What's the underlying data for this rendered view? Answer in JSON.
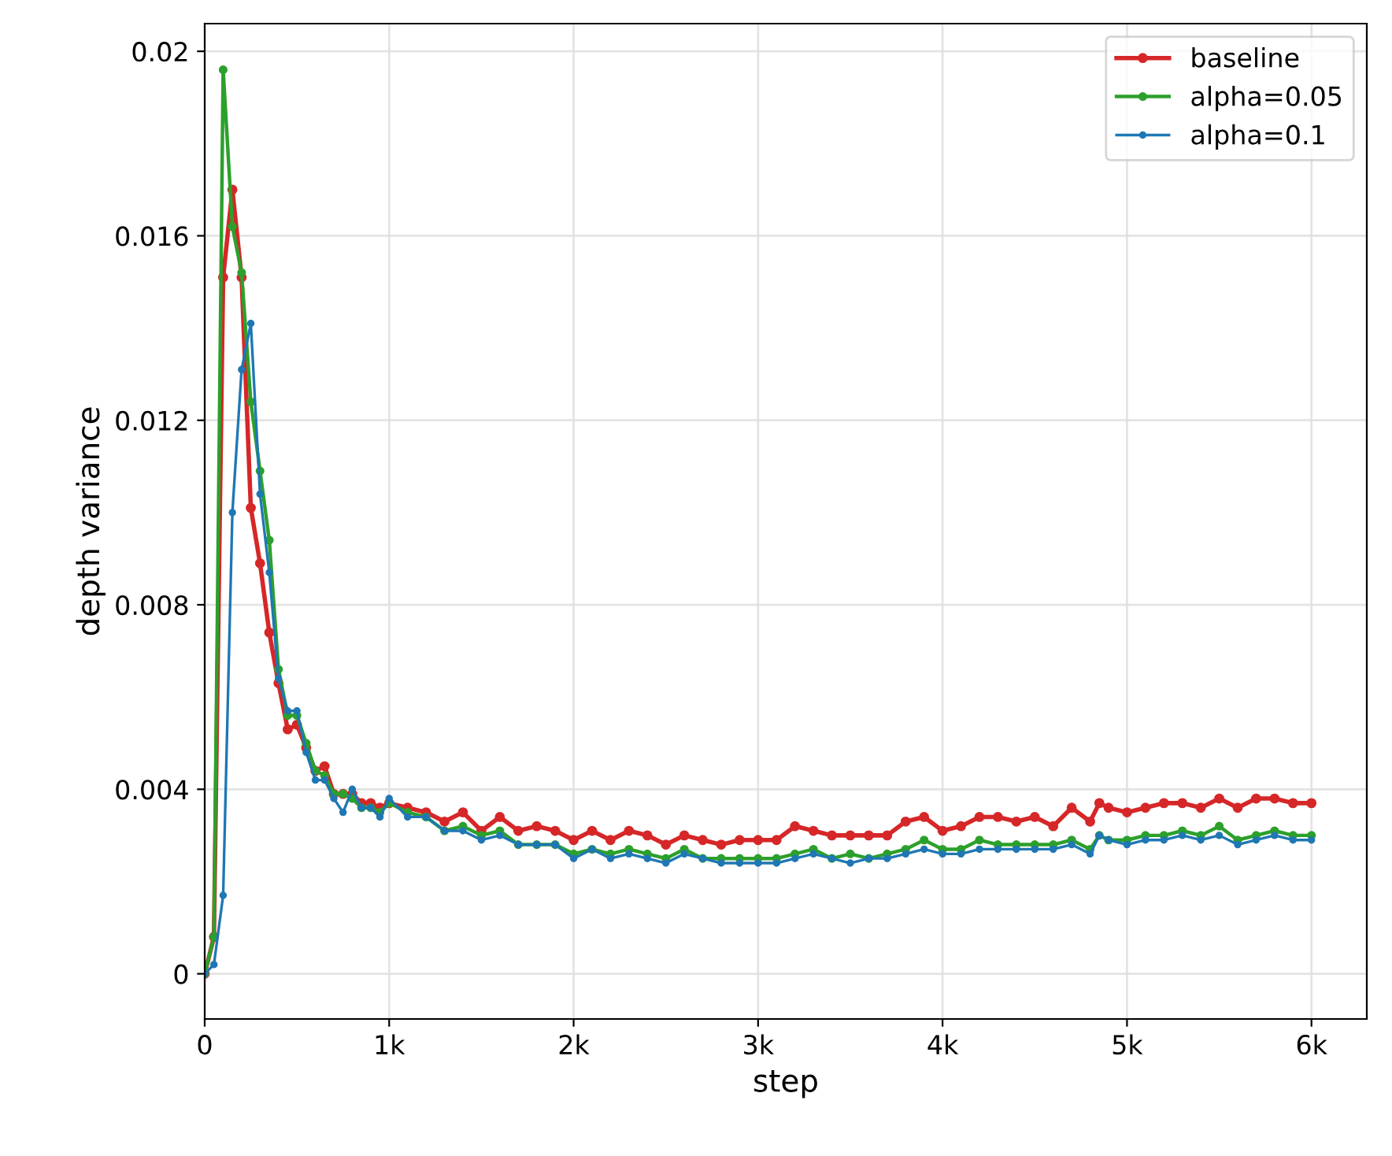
{
  "chart_data": {
    "type": "line",
    "xlabel": "step",
    "ylabel": "depth variance",
    "x": [
      0,
      50,
      100,
      150,
      200,
      250,
      300,
      350,
      400,
      450,
      500,
      550,
      600,
      650,
      700,
      750,
      800,
      850,
      900,
      950,
      1000,
      1100,
      1200,
      1300,
      1400,
      1500,
      1600,
      1700,
      1800,
      1900,
      2000,
      2100,
      2200,
      2300,
      2400,
      2500,
      2600,
      2700,
      2800,
      2900,
      3000,
      3100,
      3200,
      3300,
      3400,
      3500,
      3600,
      3700,
      3800,
      3900,
      4000,
      4100,
      4200,
      4300,
      4400,
      4500,
      4600,
      4700,
      4800,
      4850,
      4900,
      5000,
      5100,
      5200,
      5300,
      5400,
      5500,
      5600,
      5700,
      5800,
      5900,
      6000
    ],
    "series": [
      {
        "name": "baseline",
        "color": "#d62728",
        "values": [
          0,
          0.0008,
          0.0151,
          0.017,
          0.0151,
          0.0101,
          0.0089,
          0.0074,
          0.0063,
          0.0053,
          0.0054,
          0.0049,
          0.0044,
          0.0045,
          0.0039,
          0.0039,
          0.0039,
          0.0037,
          0.0037,
          0.0036,
          0.0037,
          0.0036,
          0.0035,
          0.0033,
          0.0035,
          0.0031,
          0.0034,
          0.0031,
          0.0032,
          0.0031,
          0.0029,
          0.0031,
          0.0029,
          0.0031,
          0.003,
          0.0028,
          0.003,
          0.0029,
          0.0028,
          0.0029,
          0.0029,
          0.0029,
          0.0032,
          0.0031,
          0.003,
          0.003,
          0.003,
          0.003,
          0.0033,
          0.0034,
          0.0031,
          0.0032,
          0.0034,
          0.0034,
          0.0033,
          0.0034,
          0.0032,
          0.0036,
          0.0033,
          0.0037,
          0.0036,
          0.0035,
          0.0036,
          0.0037,
          0.0037,
          0.0036,
          0.0038,
          0.0036,
          0.0038,
          0.0038,
          0.0037,
          0.0037
        ]
      },
      {
        "name": "alpha=0.05",
        "color": "#2ca02c",
        "values": [
          0,
          0.0008,
          0.0196,
          0.0162,
          0.0152,
          0.0124,
          0.0109,
          0.0094,
          0.0066,
          0.0056,
          0.0056,
          0.005,
          0.0044,
          0.0043,
          0.0039,
          0.0039,
          0.0038,
          0.0036,
          0.0036,
          0.0035,
          0.0037,
          0.0035,
          0.0034,
          0.0031,
          0.0032,
          0.003,
          0.0031,
          0.0028,
          0.0028,
          0.0028,
          0.0026,
          0.0027,
          0.0026,
          0.0027,
          0.0026,
          0.0025,
          0.0027,
          0.0025,
          0.0025,
          0.0025,
          0.0025,
          0.0025,
          0.0026,
          0.0027,
          0.0025,
          0.0026,
          0.0025,
          0.0026,
          0.0027,
          0.0029,
          0.0027,
          0.0027,
          0.0029,
          0.0028,
          0.0028,
          0.0028,
          0.0028,
          0.0029,
          0.0027,
          0.003,
          0.0029,
          0.0029,
          0.003,
          0.003,
          0.0031,
          0.003,
          0.0032,
          0.0029,
          0.003,
          0.0031,
          0.003,
          0.003
        ]
      },
      {
        "name": "alpha=0.1",
        "color": "#1f77b4",
        "values": [
          0,
          0.0002,
          0.0017,
          0.01,
          0.0131,
          0.0141,
          0.0104,
          0.0087,
          0.0064,
          0.0057,
          0.0057,
          0.0048,
          0.0042,
          0.0042,
          0.0038,
          0.0035,
          0.004,
          0.0036,
          0.0036,
          0.0034,
          0.0038,
          0.0034,
          0.0034,
          0.0031,
          0.0031,
          0.0029,
          0.003,
          0.0028,
          0.0028,
          0.0028,
          0.0025,
          0.0027,
          0.0025,
          0.0026,
          0.0025,
          0.0024,
          0.0026,
          0.0025,
          0.0024,
          0.0024,
          0.0024,
          0.0024,
          0.0025,
          0.0026,
          0.0025,
          0.0024,
          0.0025,
          0.0025,
          0.0026,
          0.0027,
          0.0026,
          0.0026,
          0.0027,
          0.0027,
          0.0027,
          0.0027,
          0.0027,
          0.0028,
          0.0026,
          0.003,
          0.0029,
          0.0028,
          0.0029,
          0.0029,
          0.003,
          0.0029,
          0.003,
          0.0028,
          0.0029,
          0.003,
          0.0029,
          0.0029
        ]
      }
    ],
    "xlim": [
      0,
      6300
    ],
    "ylim": [
      -0.00098,
      0.0206
    ],
    "xticks": [
      0,
      {
        "value": 1000,
        "label": "1k"
      },
      {
        "value": 2000,
        "label": "2k"
      },
      {
        "value": 3000,
        "label": "3k"
      },
      {
        "value": 4000,
        "label": "4k"
      },
      {
        "value": 5000,
        "label": "5k"
      },
      {
        "value": 6000,
        "label": "6k"
      }
    ],
    "yticks": [
      0,
      0.004,
      0.008,
      0.012,
      0.016,
      0.02
    ],
    "grid": true,
    "legend": "top right",
    "marker": "circle",
    "line_style": "solid"
  }
}
